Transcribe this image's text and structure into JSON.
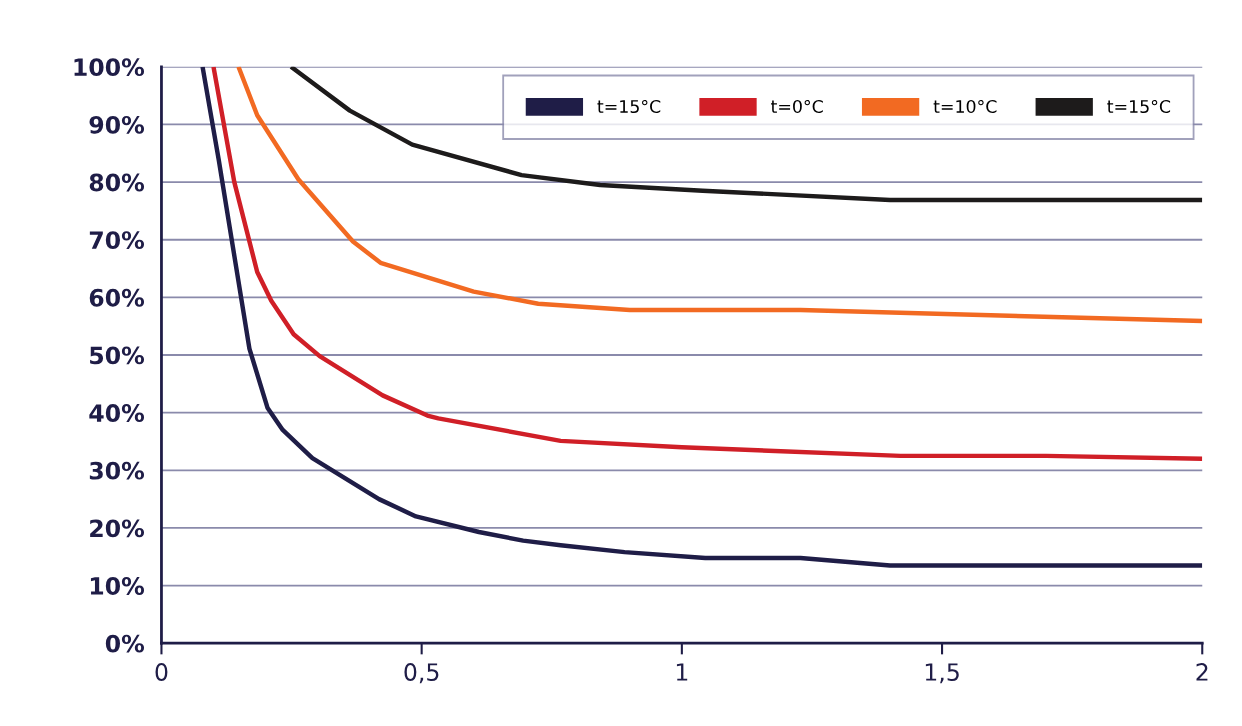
{
  "chart_data": {
    "type": "line",
    "xlim": [
      0,
      2
    ],
    "ylim": [
      0,
      100
    ],
    "xticks": [
      0,
      {
        "value": 0.5,
        "label": "0,5"
      },
      1,
      {
        "value": 1.5,
        "label": "1,5"
      },
      2
    ],
    "yticks": [
      {
        "value": 0,
        "label": "0%"
      },
      {
        "value": 10,
        "label": "10%"
      },
      {
        "value": 20,
        "label": "20%"
      },
      {
        "value": 30,
        "label": "30%"
      },
      {
        "value": 40,
        "label": "40%"
      },
      {
        "value": 50,
        "label": "50%"
      },
      {
        "value": 60,
        "label": "60%"
      },
      {
        "value": 70,
        "label": "70%"
      },
      {
        "value": 80,
        "label": "80%"
      },
      {
        "value": 90,
        "label": "90%"
      },
      {
        "value": 100,
        "label": "100%"
      }
    ],
    "grid": "y",
    "legend": "top right",
    "marker": "none",
    "line_style": "solid",
    "series": [
      {
        "name": "t=15°C",
        "color": "#1f1d47",
        "x": [
          0.079,
          0.11,
          0.169,
          0.204,
          0.233,
          0.29,
          0.418,
          0.489,
          0.61,
          0.695,
          0.767,
          0.89,
          1.045,
          1.228,
          1.4,
          2
        ],
        "values": [
          100,
          83.9,
          51.1,
          40.8,
          37,
          32.1,
          25,
          22,
          19.3,
          17.8,
          17,
          15.8,
          14.8,
          14.8,
          13.5,
          13.5
        ]
      },
      {
        "name": "t=0°C",
        "color": "#d01f27",
        "x": [
          0.1,
          0.14,
          0.184,
          0.211,
          0.254,
          0.304,
          0.425,
          0.511,
          0.532,
          0.767,
          1.0,
          1.42,
          1.7,
          2
        ],
        "values": [
          100,
          80,
          64.4,
          59.4,
          53.6,
          49.8,
          43,
          39.5,
          39,
          35.1,
          34,
          32.5,
          32.5,
          32
        ]
      },
      {
        "name": "t=10°C",
        "color": "#f26a22",
        "x": [
          0.148,
          0.184,
          0.263,
          0.368,
          0.421,
          0.6,
          0.724,
          0.9,
          1.228,
          2
        ],
        "values": [
          100,
          91.6,
          80.5,
          69.7,
          66,
          61,
          58.9,
          57.8,
          57.8,
          55.9
        ]
      },
      {
        "name": "t=15°C",
        "color": "#1d1b1b",
        "x": [
          0.249,
          0.362,
          0.482,
          0.692,
          0.843,
          1.04,
          1.4,
          2
        ],
        "values": [
          100,
          92.4,
          86.5,
          81.2,
          79.5,
          78.5,
          76.9,
          76.9
        ]
      }
    ]
  }
}
